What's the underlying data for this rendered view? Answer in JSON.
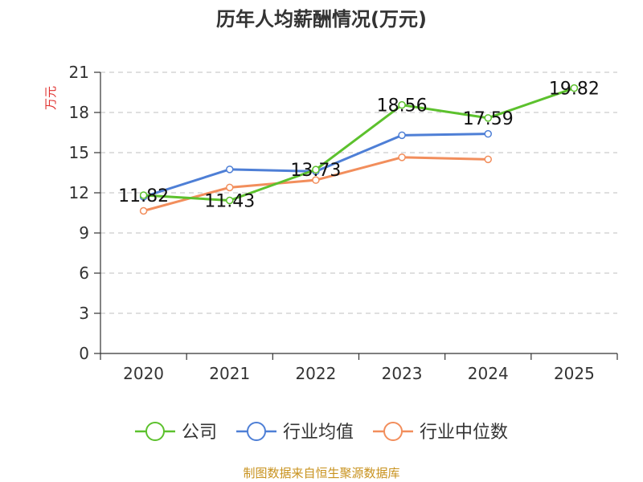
{
  "chart_data": {
    "type": "line",
    "title": "历年人均薪酬情况(万元)",
    "ylabel": "万元",
    "xlabel": "",
    "categories": [
      "2020",
      "2021",
      "2022",
      "2023",
      "2024",
      "2025"
    ],
    "ylim": [
      0,
      21
    ],
    "yticks": [
      0,
      3,
      6,
      9,
      12,
      15,
      18,
      21
    ],
    "grid": true,
    "legend_position": "bottom",
    "series": [
      {
        "name": "公司",
        "color": "#5cc12d",
        "values": [
          11.82,
          11.43,
          13.73,
          18.56,
          17.59,
          19.82
        ],
        "labels": [
          "11.82",
          "11.43",
          "13.73",
          "18.56",
          "17.59",
          "19.82"
        ]
      },
      {
        "name": "行业均值",
        "color": "#4e7fd6",
        "values": [
          11.7,
          13.75,
          13.6,
          16.3,
          16.4,
          null
        ]
      },
      {
        "name": "行业中位数",
        "color": "#f28e5c",
        "values": [
          10.65,
          12.4,
          12.95,
          14.65,
          14.5,
          null
        ]
      }
    ]
  },
  "source": "制图数据来自恒生聚源数据库"
}
